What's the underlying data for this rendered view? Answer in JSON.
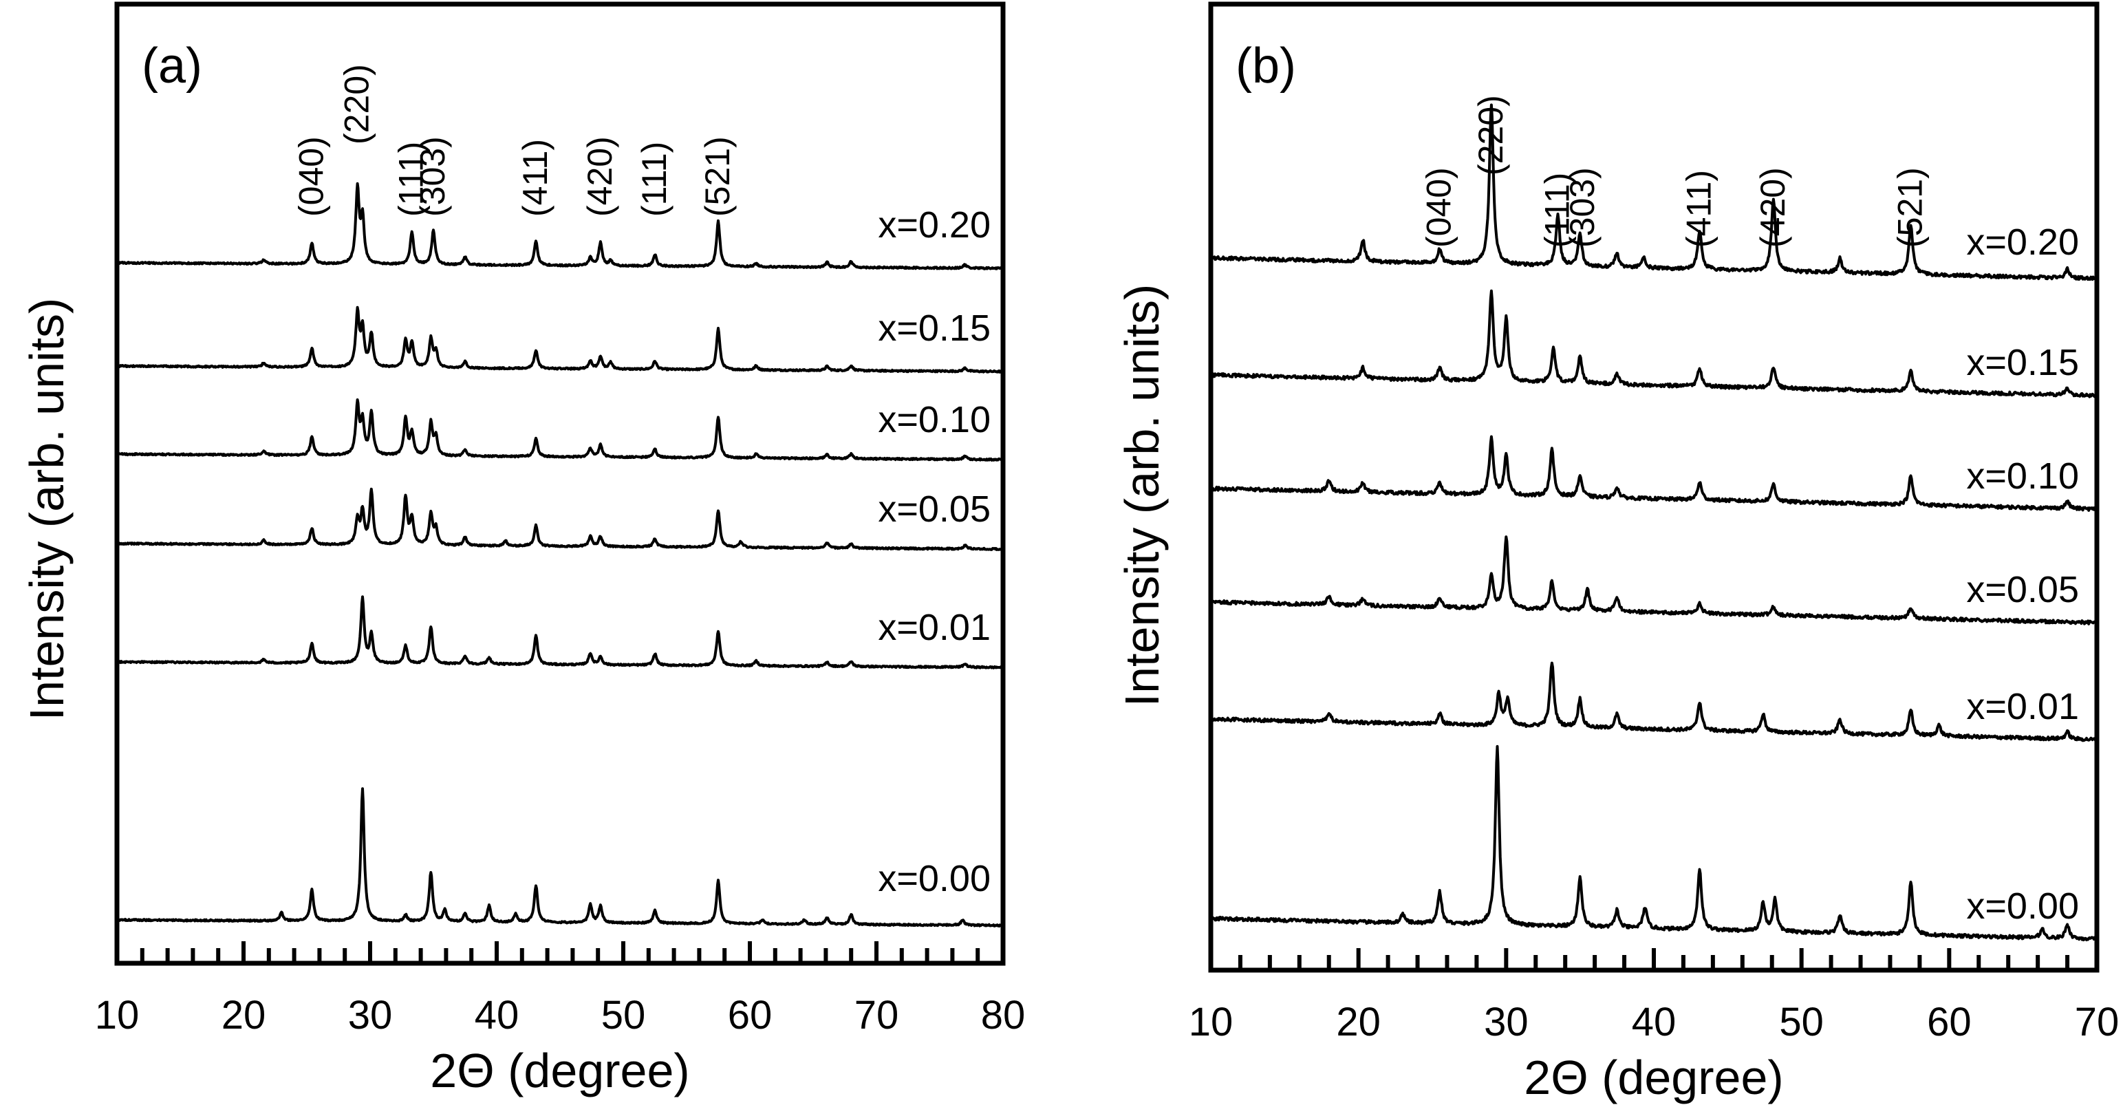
{
  "chart_data": [
    {
      "type": "line",
      "panel_label": "(a)",
      "xlabel": "2Θ (degree)",
      "ylabel": "Intensity (arb. units)",
      "xlim": [
        10,
        80
      ],
      "xticks": [
        "10",
        "20",
        "30",
        "40",
        "50",
        "60",
        "70",
        "80"
      ],
      "hkl_labels": [
        {
          "label": "(040)",
          "x": 25.4
        },
        {
          "label": "(220)",
          "x": 29.0
        },
        {
          "label": "(111)",
          "x": 33.3
        },
        {
          "label": "(303)",
          "x": 35.0
        },
        {
          "label": "(411)",
          "x": 43.1
        },
        {
          "label": "(420)",
          "x": 48.2
        },
        {
          "label": "(111)",
          "x": 52.5
        },
        {
          "label": "(521)",
          "x": 57.5
        }
      ],
      "series": [
        {
          "name": "x=0.20",
          "peaks": [
            [
              21.6,
              0.05
            ],
            [
              25.4,
              0.25
            ],
            [
              29.0,
              0.9
            ],
            [
              29.4,
              0.55
            ],
            [
              33.3,
              0.4
            ],
            [
              35.0,
              0.42
            ],
            [
              37.5,
              0.1
            ],
            [
              43.1,
              0.3
            ],
            [
              47.4,
              0.1
            ],
            [
              48.2,
              0.28
            ],
            [
              49.0,
              0.06
            ],
            [
              52.5,
              0.14
            ],
            [
              57.5,
              0.55
            ],
            [
              60.5,
              0.04
            ],
            [
              66.1,
              0.06
            ],
            [
              68.0,
              0.07
            ],
            [
              77.0,
              0.04
            ]
          ]
        },
        {
          "name": "x=0.15",
          "peaks": [
            [
              21.6,
              0.05
            ],
            [
              25.4,
              0.23
            ],
            [
              29.0,
              0.65
            ],
            [
              29.4,
              0.45
            ],
            [
              30.1,
              0.4
            ],
            [
              32.8,
              0.32
            ],
            [
              33.3,
              0.3
            ],
            [
              34.8,
              0.35
            ],
            [
              35.2,
              0.2
            ],
            [
              37.5,
              0.08
            ],
            [
              43.1,
              0.22
            ],
            [
              47.4,
              0.1
            ],
            [
              48.2,
              0.15
            ],
            [
              49.0,
              0.08
            ],
            [
              52.5,
              0.1
            ],
            [
              57.5,
              0.5
            ],
            [
              60.5,
              0.05
            ],
            [
              66.1,
              0.05
            ],
            [
              68.0,
              0.06
            ],
            [
              77.0,
              0.04
            ]
          ]
        },
        {
          "name": "x=0.10",
          "peaks": [
            [
              21.6,
              0.05
            ],
            [
              25.4,
              0.22
            ],
            [
              29.0,
              0.6
            ],
            [
              29.4,
              0.4
            ],
            [
              30.1,
              0.52
            ],
            [
              32.8,
              0.45
            ],
            [
              33.3,
              0.28
            ],
            [
              34.8,
              0.4
            ],
            [
              35.2,
              0.22
            ],
            [
              37.5,
              0.08
            ],
            [
              43.1,
              0.22
            ],
            [
              47.4,
              0.1
            ],
            [
              48.2,
              0.15
            ],
            [
              52.5,
              0.1
            ],
            [
              57.5,
              0.5
            ],
            [
              60.5,
              0.05
            ],
            [
              66.1,
              0.05
            ],
            [
              68.0,
              0.06
            ],
            [
              77.0,
              0.04
            ]
          ]
        },
        {
          "name": "x=0.05",
          "peaks": [
            [
              21.6,
              0.05
            ],
            [
              25.4,
              0.2
            ],
            [
              29.0,
              0.3
            ],
            [
              29.4,
              0.4
            ],
            [
              30.1,
              0.65
            ],
            [
              32.8,
              0.58
            ],
            [
              33.3,
              0.32
            ],
            [
              34.8,
              0.38
            ],
            [
              35.2,
              0.2
            ],
            [
              37.5,
              0.1
            ],
            [
              40.7,
              0.06
            ],
            [
              43.1,
              0.25
            ],
            [
              47.4,
              0.12
            ],
            [
              48.2,
              0.12
            ],
            [
              52.5,
              0.1
            ],
            [
              57.5,
              0.45
            ],
            [
              59.3,
              0.07
            ],
            [
              66.1,
              0.06
            ],
            [
              68.0,
              0.05
            ],
            [
              77.0,
              0.04
            ]
          ]
        },
        {
          "name": "x=0.01",
          "peaks": [
            [
              21.6,
              0.04
            ],
            [
              25.4,
              0.24
            ],
            [
              29.4,
              0.78
            ],
            [
              30.1,
              0.35
            ],
            [
              32.8,
              0.22
            ],
            [
              34.8,
              0.45
            ],
            [
              37.5,
              0.1
            ],
            [
              39.4,
              0.08
            ],
            [
              43.1,
              0.35
            ],
            [
              47.4,
              0.14
            ],
            [
              48.2,
              0.1
            ],
            [
              52.5,
              0.14
            ],
            [
              57.5,
              0.42
            ],
            [
              60.5,
              0.06
            ],
            [
              66.1,
              0.05
            ],
            [
              68.0,
              0.06
            ],
            [
              77.0,
              0.04
            ]
          ]
        },
        {
          "name": "x=0.00",
          "peaks": [
            [
              23.0,
              0.1
            ],
            [
              25.4,
              0.38
            ],
            [
              29.4,
              1.6
            ],
            [
              32.8,
              0.08
            ],
            [
              34.8,
              0.6
            ],
            [
              35.9,
              0.14
            ],
            [
              37.5,
              0.1
            ],
            [
              39.4,
              0.2
            ],
            [
              41.5,
              0.1
            ],
            [
              43.1,
              0.45
            ],
            [
              47.4,
              0.22
            ],
            [
              48.2,
              0.2
            ],
            [
              52.5,
              0.16
            ],
            [
              57.5,
              0.52
            ],
            [
              61.0,
              0.05
            ],
            [
              64.3,
              0.05
            ],
            [
              66.1,
              0.08
            ],
            [
              68.0,
              0.12
            ],
            [
              76.8,
              0.06
            ]
          ]
        }
      ]
    },
    {
      "type": "line",
      "panel_label": "(b)",
      "xlabel": "2Θ (degree)",
      "ylabel": "Intensity (arb. units)",
      "xlim": [
        10,
        70
      ],
      "xticks": [
        "10",
        "20",
        "30",
        "40",
        "50",
        "60",
        "70"
      ],
      "hkl_labels": [
        {
          "label": "(040)",
          "x": 25.5
        },
        {
          "label": "(220)",
          "x": 29.0
        },
        {
          "label": "(111)",
          "x": 33.5
        },
        {
          "label": "(303)",
          "x": 35.2
        },
        {
          "label": "(411)",
          "x": 43.1
        },
        {
          "label": "(420)",
          "x": 48.1
        },
        {
          "label": "(521)",
          "x": 57.4
        }
      ],
      "series": [
        {
          "name": "x=0.20",
          "peaks": [
            [
              20.3,
              0.12
            ],
            [
              25.5,
              0.08
            ],
            [
              29.0,
              0.9
            ],
            [
              33.5,
              0.28
            ],
            [
              35.0,
              0.18
            ],
            [
              37.5,
              0.08
            ],
            [
              39.3,
              0.06
            ],
            [
              43.1,
              0.22
            ],
            [
              48.1,
              0.4
            ],
            [
              52.6,
              0.08
            ],
            [
              57.4,
              0.28
            ],
            [
              68.0,
              0.05
            ]
          ]
        },
        {
          "name": "x=0.15",
          "peaks": [
            [
              20.3,
              0.06
            ],
            [
              25.5,
              0.07
            ],
            [
              29.0,
              0.5
            ],
            [
              30.0,
              0.35
            ],
            [
              33.2,
              0.2
            ],
            [
              35.0,
              0.15
            ],
            [
              37.5,
              0.06
            ],
            [
              43.1,
              0.1
            ],
            [
              48.1,
              0.12
            ],
            [
              57.4,
              0.12
            ],
            [
              68.0,
              0.04
            ]
          ]
        },
        {
          "name": "x=0.10",
          "peaks": [
            [
              18.0,
              0.06
            ],
            [
              20.3,
              0.05
            ],
            [
              25.5,
              0.06
            ],
            [
              29.0,
              0.32
            ],
            [
              30.0,
              0.22
            ],
            [
              33.1,
              0.26
            ],
            [
              35.0,
              0.12
            ],
            [
              37.5,
              0.06
            ],
            [
              43.1,
              0.1
            ],
            [
              48.1,
              0.1
            ],
            [
              57.4,
              0.16
            ],
            [
              68.0,
              0.04
            ]
          ]
        },
        {
          "name": "x=0.05",
          "peaks": [
            [
              18.0,
              0.05
            ],
            [
              20.3,
              0.04
            ],
            [
              25.5,
              0.05
            ],
            [
              29.0,
              0.18
            ],
            [
              30.0,
              0.4
            ],
            [
              33.1,
              0.16
            ],
            [
              35.5,
              0.12
            ],
            [
              37.5,
              0.08
            ],
            [
              43.1,
              0.06
            ],
            [
              48.1,
              0.05
            ],
            [
              57.4,
              0.06
            ]
          ]
        },
        {
          "name": "x=0.01",
          "peaks": [
            [
              18.0,
              0.05
            ],
            [
              25.5,
              0.06
            ],
            [
              29.5,
              0.18
            ],
            [
              30.1,
              0.15
            ],
            [
              33.1,
              0.36
            ],
            [
              35.0,
              0.16
            ],
            [
              37.5,
              0.08
            ],
            [
              43.1,
              0.16
            ],
            [
              47.4,
              0.1
            ],
            [
              52.6,
              0.08
            ],
            [
              57.4,
              0.14
            ],
            [
              59.3,
              0.06
            ],
            [
              68.0,
              0.04
            ]
          ]
        },
        {
          "name": "x=0.00",
          "peaks": [
            [
              23.0,
              0.05
            ],
            [
              25.5,
              0.18
            ],
            [
              29.4,
              1.0
            ],
            [
              35.0,
              0.28
            ],
            [
              37.5,
              0.1
            ],
            [
              39.4,
              0.12
            ],
            [
              43.1,
              0.34
            ],
            [
              47.4,
              0.16
            ],
            [
              48.2,
              0.18
            ],
            [
              52.6,
              0.1
            ],
            [
              57.4,
              0.3
            ],
            [
              66.3,
              0.05
            ],
            [
              68.0,
              0.08
            ]
          ]
        }
      ]
    }
  ]
}
